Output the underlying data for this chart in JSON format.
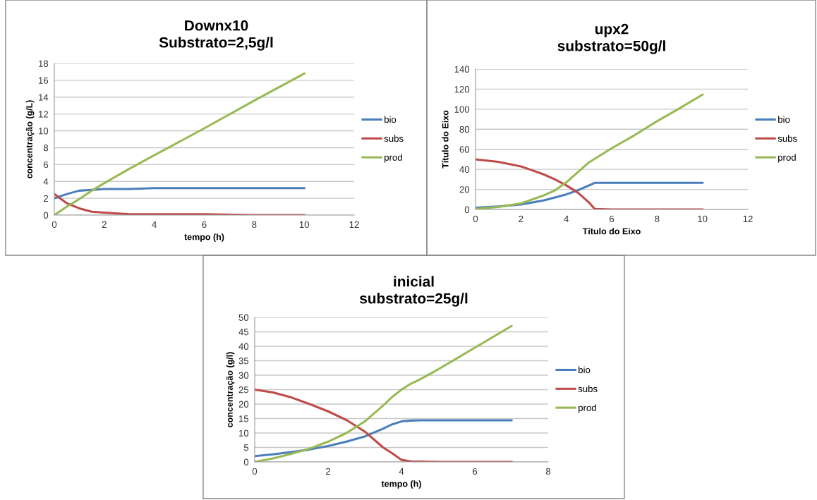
{
  "chart_data": [
    {
      "type": "line",
      "title": "Downx10\nSubstrato=2,5g/l",
      "xlabel": "tempo (h)",
      "ylabel": "concentração (g/L)",
      "xlim": [
        0,
        12
      ],
      "xticks": [
        0,
        2,
        4,
        6,
        8,
        10,
        12
      ],
      "ylim": [
        0,
        18
      ],
      "yticks": [
        0,
        2,
        4,
        6,
        8,
        10,
        12,
        14,
        16,
        18
      ],
      "grid": "y",
      "legend": "right",
      "x": [
        0,
        0.5,
        1,
        1.5,
        2,
        3,
        4,
        6,
        8,
        10
      ],
      "series": [
        {
          "name": "bio",
          "color": "#4a7ebb",
          "values": [
            2,
            2.5,
            2.9,
            3.0,
            3.1,
            3.1,
            3.2,
            3.2,
            3.2,
            3.2
          ]
        },
        {
          "name": "subs",
          "color": "#be4b48",
          "values": [
            2.5,
            1.4,
            0.8,
            0.4,
            0.3,
            0.1,
            0.1,
            0.1,
            0,
            0
          ]
        },
        {
          "name": "prod",
          "color": "#98b954",
          "values": [
            0,
            1,
            1.9,
            2.9,
            3.8,
            5.5,
            7.1,
            10.3,
            13.6,
            16.8
          ]
        }
      ]
    },
    {
      "type": "line",
      "title": "upx2\nsubstrato=50g/l",
      "xlabel": "Título do Eixo",
      "ylabel": "Título do Eixo",
      "xlim": [
        0,
        12
      ],
      "xticks": [
        0,
        2,
        4,
        6,
        8,
        10,
        12
      ],
      "ylim": [
        0,
        140
      ],
      "yticks": [
        0,
        20,
        40,
        60,
        80,
        100,
        120,
        140
      ],
      "grid": "y",
      "legend": "right",
      "x": [
        0,
        1,
        2,
        3,
        3.5,
        4,
        4.5,
        5,
        5.25,
        6,
        7,
        8,
        9,
        10
      ],
      "series": [
        {
          "name": "bio",
          "color": "#4a7ebb",
          "values": [
            1.8,
            3,
            5,
            9,
            12,
            15,
            19,
            24,
            26.5,
            26.5,
            26.6,
            26.6,
            26.6,
            26.6
          ]
        },
        {
          "name": "subs",
          "color": "#be4b48",
          "values": [
            50,
            47.5,
            43,
            35,
            30,
            24,
            17,
            7,
            0.5,
            0,
            0,
            0,
            0,
            0
          ]
        },
        {
          "name": "prod",
          "color": "#98b954",
          "values": [
            0.5,
            2.5,
            6,
            14,
            19,
            27,
            37,
            47,
            50.5,
            61,
            74,
            88,
            101,
            114.5
          ]
        }
      ]
    },
    {
      "type": "line",
      "title": "inicial\nsubstrato=25g/l",
      "xlabel": "tempo (h)",
      "ylabel": "concentração (g/l)",
      "xlim": [
        0,
        8
      ],
      "xticks": [
        0,
        2,
        4,
        6,
        8
      ],
      "ylim": [
        0,
        50
      ],
      "yticks": [
        0,
        5,
        10,
        15,
        20,
        25,
        30,
        35,
        40,
        45,
        50
      ],
      "grid": "y",
      "legend": "right",
      "x": [
        0,
        0.5,
        1,
        1.5,
        2,
        2.5,
        3,
        3.5,
        3.75,
        4,
        4.25,
        4.5,
        5,
        6,
        7
      ],
      "series": [
        {
          "name": "bio",
          "color": "#4a7ebb",
          "values": [
            2,
            2.6,
            3.4,
            4.3,
            5.5,
            7,
            8.8,
            11.5,
            13,
            14,
            14.3,
            14.4,
            14.4,
            14.4,
            14.4
          ]
        },
        {
          "name": "subs",
          "color": "#be4b48",
          "values": [
            25,
            24,
            22.3,
            20,
            17.5,
            14.5,
            10.5,
            5,
            3,
            0.7,
            0.2,
            0.1,
            0,
            0,
            0
          ]
        },
        {
          "name": "prod",
          "color": "#98b954",
          "values": [
            0,
            1.2,
            2.8,
            4.6,
            7,
            10,
            14,
            19.5,
            22.5,
            25,
            27,
            28.5,
            32,
            39.5,
            47
          ]
        }
      ]
    }
  ]
}
